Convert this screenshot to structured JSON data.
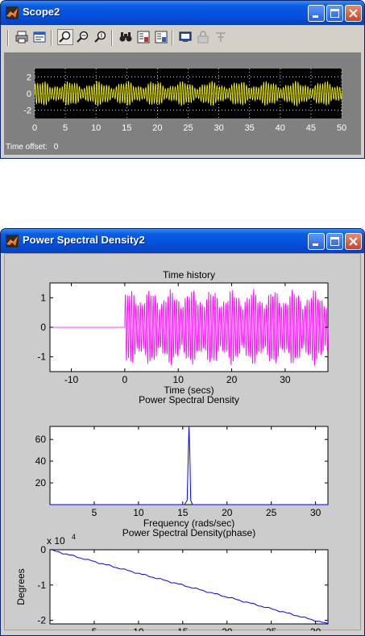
{
  "scope_window": {
    "title": "Scope2",
    "time_offset_label": "Time offset:",
    "time_offset_value": "0",
    "toolbar_icons": [
      "print-icon",
      "parameters-icon",
      "zoom-icon",
      "zoom-x-icon",
      "zoom-y-icon",
      "autoscale-icon",
      "save-axes-icon",
      "restore-axes-icon",
      "floating-scope-icon",
      "lock-axes-icon",
      "signal-selection-icon"
    ],
    "colors": {
      "background": "#000000",
      "signal": "#ffff00",
      "frame": "#808080"
    }
  },
  "psd_window": {
    "title": "Power Spectral Density2"
  },
  "chart_data": [
    {
      "type": "line",
      "window": "Scope2",
      "title": "",
      "xlabel": "",
      "ylabel": "",
      "xlim": [
        0,
        50
      ],
      "ylim": [
        -3,
        3
      ],
      "x_ticks": [
        0,
        5,
        10,
        15,
        20,
        25,
        30,
        35,
        40,
        45,
        50
      ],
      "y_ticks": [
        -2,
        0,
        2
      ],
      "grid": true,
      "series": [
        {
          "color": "#ffff00",
          "description": "amplitude-modulated oscillation",
          "x_range": [
            0,
            50
          ],
          "envelope_min": 0.5,
          "envelope_max": 1.5
        }
      ]
    },
    {
      "type": "line",
      "window": "Power Spectral Density2",
      "title": "Time history",
      "xlabel": "Time (secs)",
      "ylabel": "",
      "xlim": [
        -14,
        38
      ],
      "ylim": [
        -1.5,
        1.5
      ],
      "x_ticks": [
        -10,
        0,
        10,
        20,
        30
      ],
      "y_ticks": [
        -1,
        0,
        1
      ],
      "series": [
        {
          "color": "#ff00ff",
          "flat_segment": {
            "x": [
              -14,
              0
            ],
            "y": 0
          },
          "oscillation_x_range": [
            0,
            38
          ],
          "envelope_min": 0.6,
          "envelope_max": 1.3
        }
      ]
    },
    {
      "type": "line",
      "window": "Power Spectral Density2",
      "title": "Power Spectral Density",
      "xlabel": "Frequency (rads/sec)",
      "ylabel": "",
      "xlim": [
        0,
        31.4
      ],
      "ylim": [
        0,
        72
      ],
      "x_ticks": [
        5,
        10,
        15,
        20,
        25,
        30
      ],
      "y_ticks": [
        20,
        40,
        60
      ],
      "series": [
        {
          "color": "#0000ff",
          "x": [
            0,
            15.2,
            15.5,
            15.7,
            15.8,
            15.9,
            16.1,
            31.4
          ],
          "y": [
            0,
            0,
            4,
            72,
            47,
            4,
            0,
            0
          ]
        }
      ]
    },
    {
      "type": "line",
      "window": "Power Spectral Density2",
      "title": "Power Spectral Density(phase)",
      "xlabel": "Frequency (rads/sec)",
      "ylabel": "Degrees",
      "y_scale_label": "x 10",
      "y_scale_exponent": "4",
      "xlim": [
        0,
        31.4
      ],
      "ylim": [
        -2.1,
        0
      ],
      "x_ticks": [
        5,
        10,
        15,
        20,
        25,
        30
      ],
      "y_ticks": [
        0,
        -1,
        -2
      ],
      "series": [
        {
          "color": "#0000ff",
          "x": [
            0,
            31.4
          ],
          "y": [
            0,
            -2.1
          ]
        }
      ]
    }
  ]
}
